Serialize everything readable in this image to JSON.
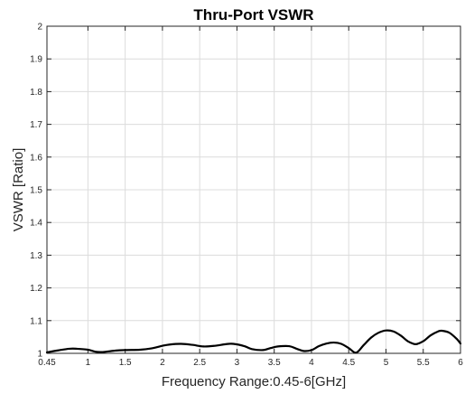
{
  "chart_data": {
    "type": "line",
    "title": "Thru-Port VSWR",
    "xlabel": "Frequency Range:0.45-6[GHz]",
    "ylabel": "VSWR [Ratio]",
    "xlim": [
      0.45,
      6
    ],
    "ylim": [
      1,
      2
    ],
    "grid": true,
    "x_ticks": [
      0.45,
      1,
      1.5,
      2,
      2.5,
      3,
      3.5,
      4,
      4.5,
      5,
      5.5,
      6
    ],
    "x_tick_labels": [
      "0.45",
      "1",
      "1.5",
      "2",
      "2.5",
      "3",
      "3.5",
      "4",
      "4.5",
      "5",
      "5.5",
      "6"
    ],
    "y_ticks": [
      1,
      1.1,
      1.2,
      1.3,
      1.4,
      1.5,
      1.6,
      1.7,
      1.8,
      1.9,
      2
    ],
    "y_tick_labels": [
      "1",
      "1.1",
      "1.2",
      "1.3",
      "1.4",
      "1.5",
      "1.6",
      "1.7",
      "1.8",
      "1.9",
      "2"
    ],
    "series": [
      {
        "x": [
          0.45,
          0.6,
          0.75,
          0.85,
          1.0,
          1.1,
          1.2,
          1.35,
          1.5,
          1.7,
          1.85,
          2.0,
          2.1,
          2.25,
          2.4,
          2.55,
          2.7,
          2.85,
          2.95,
          3.1,
          3.2,
          3.35,
          3.45,
          3.55,
          3.7,
          3.8,
          3.9,
          4.0,
          4.1,
          4.2,
          4.3,
          4.4,
          4.5,
          4.6,
          4.7,
          4.8,
          4.9,
          5.0,
          5.1,
          5.2,
          5.3,
          5.4,
          5.5,
          5.6,
          5.7,
          5.75,
          5.85,
          5.95,
          6.0
        ],
        "y": [
          1.003,
          1.009,
          1.014,
          1.014,
          1.011,
          1.005,
          1.004,
          1.008,
          1.01,
          1.011,
          1.015,
          1.023,
          1.027,
          1.029,
          1.026,
          1.021,
          1.023,
          1.028,
          1.029,
          1.022,
          1.013,
          1.01,
          1.016,
          1.021,
          1.022,
          1.014,
          1.007,
          1.01,
          1.022,
          1.03,
          1.033,
          1.029,
          1.016,
          1.002,
          1.025,
          1.048,
          1.063,
          1.07,
          1.067,
          1.054,
          1.036,
          1.028,
          1.037,
          1.055,
          1.067,
          1.069,
          1.063,
          1.044,
          1.03
        ]
      }
    ]
  }
}
